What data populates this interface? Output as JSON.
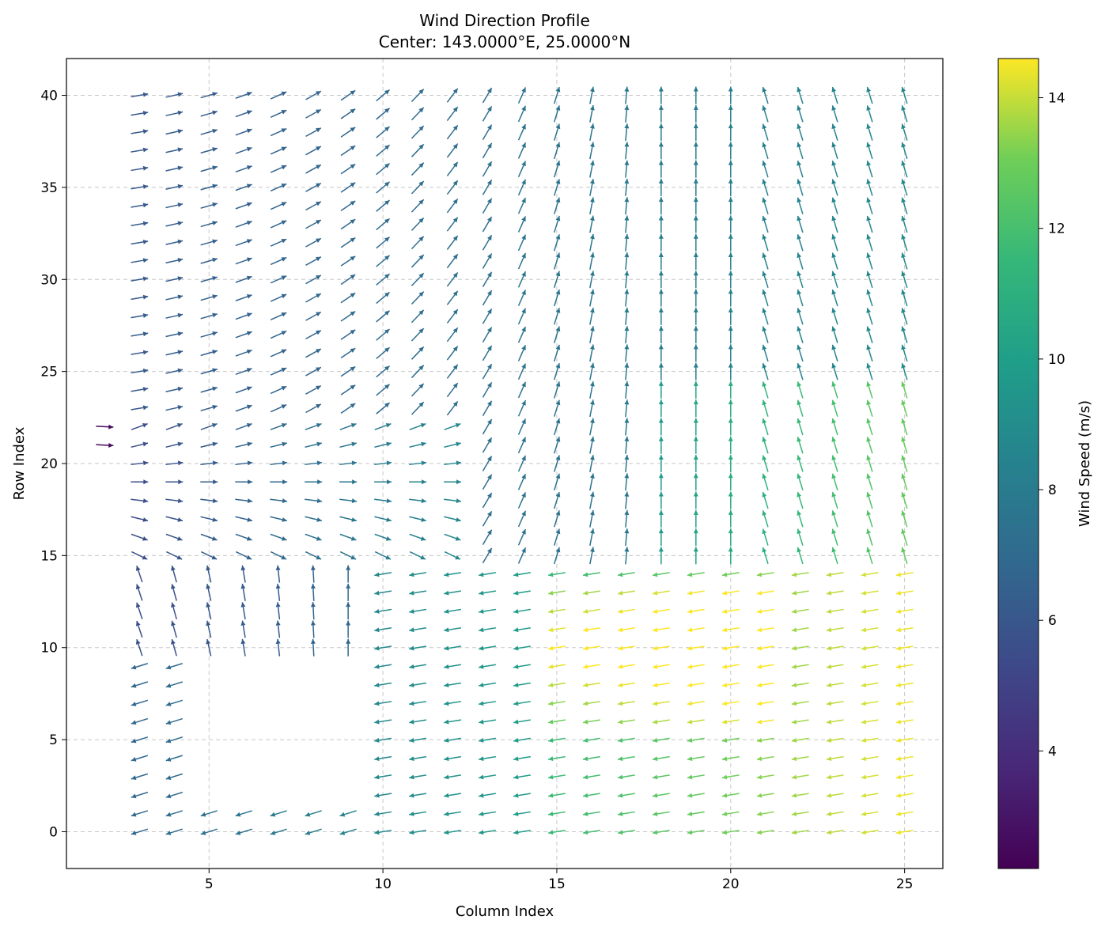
{
  "chart_data": {
    "type": "quiver",
    "title": "Wind Direction Profile",
    "subtitle": "Center: 143.0000°E, 25.0000°N",
    "xlabel": "Column Index",
    "ylabel": "Row Index",
    "xlim": [
      0.9,
      26.1
    ],
    "ylim": [
      42,
      -2
    ],
    "y_inverted": true,
    "grid": true,
    "x_ticks": [
      5,
      10,
      15,
      20,
      25
    ],
    "y_ticks": [
      0,
      5,
      10,
      15,
      20,
      25,
      30,
      35,
      40
    ],
    "colorbar": {
      "label": "Wind Speed (m/s)",
      "colormap": "viridis",
      "range": [
        2.2,
        14.6
      ],
      "ticks": [
        4,
        6,
        8,
        10,
        12,
        14
      ]
    },
    "grid_extent": {
      "columns": [
        2,
        25
      ],
      "rows": [
        0,
        40
      ]
    },
    "wind_field_notes": "Easterly flow (pointing west) in rows 0-14; southeasterly flow in the lower-left region; northward (southerly) flow in the lower-right region. Max speed about 14.5 m/s near columns 18-19, rows 10-12; minimum about 2.5 m/s near column 2, rows 21-22. No arrows for columns 5-9, rows 2-9, nor for column 2 except rows 21-22."
  }
}
